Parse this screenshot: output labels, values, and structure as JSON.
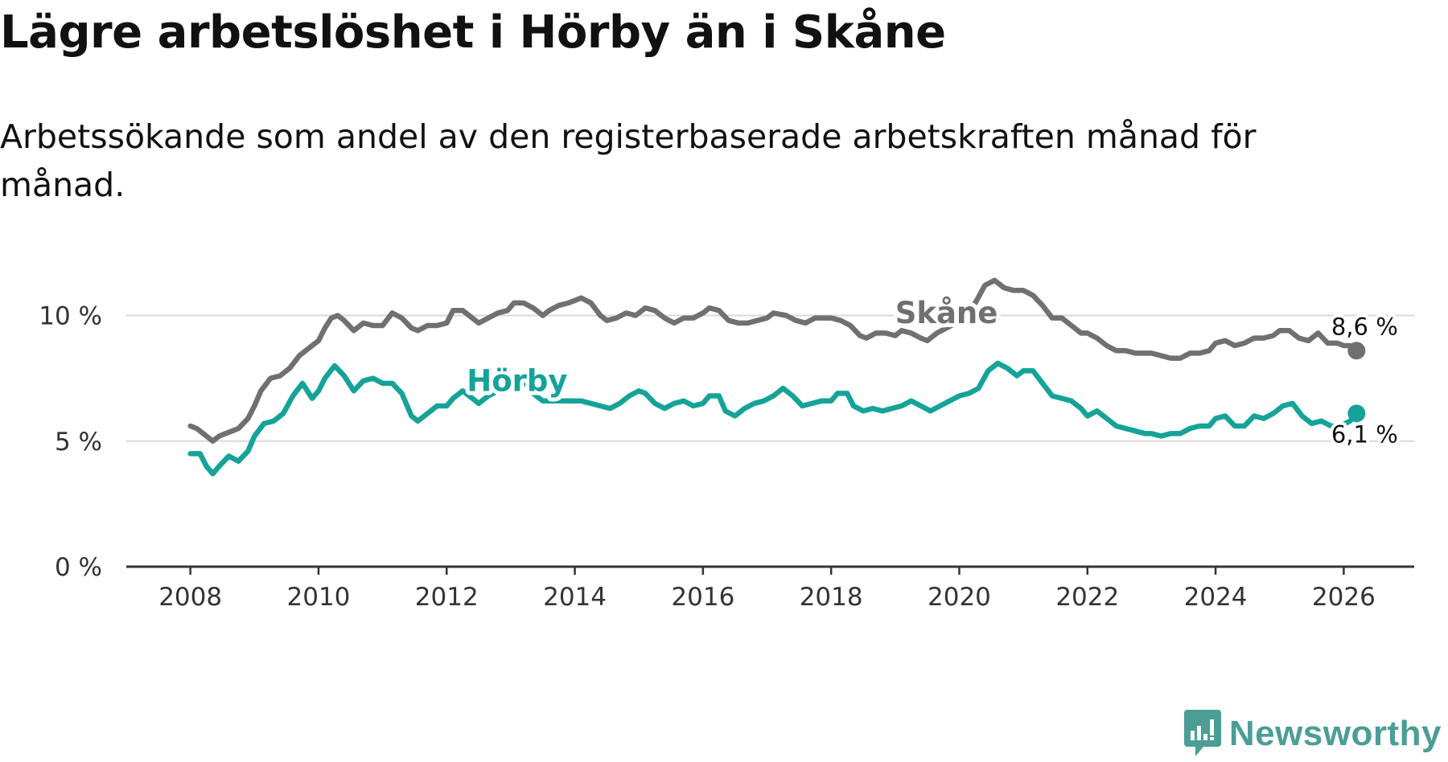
{
  "title": "Lägre arbetslöshet i Hörby än i Skåne",
  "subtitle": "Arbetssökande som andel av den registerbaserade arbetskraften månad för månad.",
  "brand": {
    "name": "Newsworthy",
    "color": "#4a9e96",
    "icon": "newsworthy-logo-icon"
  },
  "chart_data": {
    "type": "line",
    "ylim": [
      0,
      12
    ],
    "xlim": [
      2007.0,
      2027.1
    ],
    "yticks": [
      0,
      5,
      10
    ],
    "yticklabels": [
      "0 %",
      "5 %",
      "10 %"
    ],
    "xticks": [
      2008,
      2010,
      2012,
      2014,
      2016,
      2018,
      2020,
      2022,
      2024,
      2026
    ],
    "xticklabels": [
      "2008",
      "2010",
      "2012",
      "2014",
      "2016",
      "2018",
      "2020",
      "2022",
      "2024",
      "2026"
    ],
    "grid": true,
    "series": [
      {
        "name": "Skåne",
        "color": "#707070",
        "end_label": "8,6 %",
        "points": [
          [
            2008.0,
            5.6
          ],
          [
            2008.1,
            5.5
          ],
          [
            2008.25,
            5.2
          ],
          [
            2008.35,
            5.0
          ],
          [
            2008.45,
            5.2
          ],
          [
            2008.6,
            5.35
          ],
          [
            2008.75,
            5.5
          ],
          [
            2008.9,
            5.9
          ],
          [
            2009.0,
            6.4
          ],
          [
            2009.1,
            7.0
          ],
          [
            2009.25,
            7.5
          ],
          [
            2009.4,
            7.6
          ],
          [
            2009.55,
            7.9
          ],
          [
            2009.7,
            8.4
          ],
          [
            2009.85,
            8.7
          ],
          [
            2010.0,
            9.0
          ],
          [
            2010.1,
            9.5
          ],
          [
            2010.2,
            9.9
          ],
          [
            2010.3,
            10.0
          ],
          [
            2010.4,
            9.8
          ],
          [
            2010.55,
            9.4
          ],
          [
            2010.7,
            9.7
          ],
          [
            2010.85,
            9.6
          ],
          [
            2011.0,
            9.6
          ],
          [
            2011.15,
            10.1
          ],
          [
            2011.3,
            9.9
          ],
          [
            2011.45,
            9.5
          ],
          [
            2011.55,
            9.4
          ],
          [
            2011.7,
            9.6
          ],
          [
            2011.85,
            9.6
          ],
          [
            2012.0,
            9.7
          ],
          [
            2012.1,
            10.2
          ],
          [
            2012.25,
            10.2
          ],
          [
            2012.4,
            9.9
          ],
          [
            2012.5,
            9.7
          ],
          [
            2012.65,
            9.9
          ],
          [
            2012.8,
            10.1
          ],
          [
            2012.95,
            10.2
          ],
          [
            2013.05,
            10.5
          ],
          [
            2013.2,
            10.5
          ],
          [
            2013.35,
            10.3
          ],
          [
            2013.5,
            10.0
          ],
          [
            2013.6,
            10.2
          ],
          [
            2013.75,
            10.4
          ],
          [
            2013.9,
            10.5
          ],
          [
            2014.0,
            10.6
          ],
          [
            2014.1,
            10.7
          ],
          [
            2014.25,
            10.5
          ],
          [
            2014.4,
            10.0
          ],
          [
            2014.5,
            9.8
          ],
          [
            2014.65,
            9.9
          ],
          [
            2014.8,
            10.1
          ],
          [
            2014.95,
            10.0
          ],
          [
            2015.1,
            10.3
          ],
          [
            2015.25,
            10.2
          ],
          [
            2015.4,
            9.9
          ],
          [
            2015.55,
            9.7
          ],
          [
            2015.7,
            9.9
          ],
          [
            2015.85,
            9.9
          ],
          [
            2016.0,
            10.1
          ],
          [
            2016.1,
            10.3
          ],
          [
            2016.25,
            10.2
          ],
          [
            2016.4,
            9.8
          ],
          [
            2016.55,
            9.7
          ],
          [
            2016.7,
            9.7
          ],
          [
            2016.85,
            9.8
          ],
          [
            2017.0,
            9.9
          ],
          [
            2017.1,
            10.1
          ],
          [
            2017.3,
            10.0
          ],
          [
            2017.45,
            9.8
          ],
          [
            2017.6,
            9.7
          ],
          [
            2017.75,
            9.9
          ],
          [
            2017.9,
            9.9
          ],
          [
            2018.0,
            9.9
          ],
          [
            2018.15,
            9.8
          ],
          [
            2018.3,
            9.6
          ],
          [
            2018.45,
            9.2
          ],
          [
            2018.55,
            9.1
          ],
          [
            2018.7,
            9.3
          ],
          [
            2018.85,
            9.3
          ],
          [
            2019.0,
            9.2
          ],
          [
            2019.1,
            9.4
          ],
          [
            2019.25,
            9.3
          ],
          [
            2019.4,
            9.1
          ],
          [
            2019.5,
            9.0
          ],
          [
            2019.65,
            9.3
          ],
          [
            2019.8,
            9.5
          ],
          [
            2019.95,
            9.7
          ],
          [
            2020.1,
            10.0
          ],
          [
            2020.25,
            10.5
          ],
          [
            2020.4,
            11.2
          ],
          [
            2020.55,
            11.4
          ],
          [
            2020.7,
            11.1
          ],
          [
            2020.85,
            11.0
          ],
          [
            2021.0,
            11.0
          ],
          [
            2021.15,
            10.8
          ],
          [
            2021.3,
            10.4
          ],
          [
            2021.45,
            9.9
          ],
          [
            2021.6,
            9.9
          ],
          [
            2021.75,
            9.6
          ],
          [
            2021.9,
            9.3
          ],
          [
            2022.0,
            9.3
          ],
          [
            2022.15,
            9.1
          ],
          [
            2022.3,
            8.8
          ],
          [
            2022.45,
            8.6
          ],
          [
            2022.6,
            8.6
          ],
          [
            2022.75,
            8.5
          ],
          [
            2022.9,
            8.5
          ],
          [
            2023.0,
            8.5
          ],
          [
            2023.15,
            8.4
          ],
          [
            2023.3,
            8.3
          ],
          [
            2023.45,
            8.3
          ],
          [
            2023.6,
            8.5
          ],
          [
            2023.75,
            8.5
          ],
          [
            2023.9,
            8.6
          ],
          [
            2024.0,
            8.9
          ],
          [
            2024.15,
            9.0
          ],
          [
            2024.3,
            8.8
          ],
          [
            2024.45,
            8.9
          ],
          [
            2024.6,
            9.1
          ],
          [
            2024.75,
            9.1
          ],
          [
            2024.9,
            9.2
          ],
          [
            2025.0,
            9.4
          ],
          [
            2025.15,
            9.4
          ],
          [
            2025.3,
            9.1
          ],
          [
            2025.45,
            9.0
          ],
          [
            2025.6,
            9.3
          ],
          [
            2025.75,
            8.9
          ],
          [
            2025.9,
            8.9
          ],
          [
            2026.0,
            8.8
          ],
          [
            2026.1,
            8.8
          ],
          [
            2026.2,
            8.6
          ]
        ]
      },
      {
        "name": "Hörby",
        "color": "#15a399",
        "end_label": "6,1 %",
        "points": [
          [
            2008.0,
            4.5
          ],
          [
            2008.15,
            4.5
          ],
          [
            2008.25,
            4.0
          ],
          [
            2008.35,
            3.7
          ],
          [
            2008.45,
            4.0
          ],
          [
            2008.6,
            4.4
          ],
          [
            2008.75,
            4.2
          ],
          [
            2008.9,
            4.6
          ],
          [
            2009.0,
            5.2
          ],
          [
            2009.15,
            5.7
          ],
          [
            2009.3,
            5.8
          ],
          [
            2009.45,
            6.1
          ],
          [
            2009.6,
            6.8
          ],
          [
            2009.75,
            7.3
          ],
          [
            2009.9,
            6.7
          ],
          [
            2010.0,
            7.0
          ],
          [
            2010.1,
            7.5
          ],
          [
            2010.25,
            8.0
          ],
          [
            2010.4,
            7.6
          ],
          [
            2010.55,
            7.0
          ],
          [
            2010.7,
            7.4
          ],
          [
            2010.85,
            7.5
          ],
          [
            2011.0,
            7.3
          ],
          [
            2011.15,
            7.3
          ],
          [
            2011.3,
            6.9
          ],
          [
            2011.45,
            6.0
          ],
          [
            2011.55,
            5.8
          ],
          [
            2011.7,
            6.1
          ],
          [
            2011.85,
            6.4
          ],
          [
            2012.0,
            6.4
          ],
          [
            2012.1,
            6.7
          ],
          [
            2012.25,
            7.0
          ],
          [
            2012.4,
            6.7
          ],
          [
            2012.5,
            6.5
          ],
          [
            2012.65,
            6.8
          ],
          [
            2012.8,
            7.0
          ],
          [
            2012.95,
            7.2
          ],
          [
            2013.05,
            7.5
          ],
          [
            2013.2,
            7.4
          ],
          [
            2013.35,
            6.9
          ],
          [
            2013.5,
            6.6
          ],
          [
            2013.65,
            6.6
          ],
          [
            2013.8,
            6.6
          ],
          [
            2013.95,
            6.6
          ],
          [
            2014.1,
            6.6
          ],
          [
            2014.25,
            6.5
          ],
          [
            2014.4,
            6.4
          ],
          [
            2014.55,
            6.3
          ],
          [
            2014.7,
            6.5
          ],
          [
            2014.85,
            6.8
          ],
          [
            2015.0,
            7.0
          ],
          [
            2015.1,
            6.9
          ],
          [
            2015.25,
            6.5
          ],
          [
            2015.4,
            6.3
          ],
          [
            2015.55,
            6.5
          ],
          [
            2015.7,
            6.6
          ],
          [
            2015.85,
            6.4
          ],
          [
            2016.0,
            6.5
          ],
          [
            2016.1,
            6.8
          ],
          [
            2016.25,
            6.8
          ],
          [
            2016.35,
            6.2
          ],
          [
            2016.5,
            6.0
          ],
          [
            2016.65,
            6.3
          ],
          [
            2016.8,
            6.5
          ],
          [
            2016.95,
            6.6
          ],
          [
            2017.1,
            6.8
          ],
          [
            2017.25,
            7.1
          ],
          [
            2017.4,
            6.8
          ],
          [
            2017.55,
            6.4
          ],
          [
            2017.7,
            6.5
          ],
          [
            2017.85,
            6.6
          ],
          [
            2018.0,
            6.6
          ],
          [
            2018.1,
            6.9
          ],
          [
            2018.25,
            6.9
          ],
          [
            2018.35,
            6.4
          ],
          [
            2018.5,
            6.2
          ],
          [
            2018.65,
            6.3
          ],
          [
            2018.8,
            6.2
          ],
          [
            2018.95,
            6.3
          ],
          [
            2019.1,
            6.4
          ],
          [
            2019.25,
            6.6
          ],
          [
            2019.4,
            6.4
          ],
          [
            2019.55,
            6.2
          ],
          [
            2019.7,
            6.4
          ],
          [
            2019.85,
            6.6
          ],
          [
            2020.0,
            6.8
          ],
          [
            2020.15,
            6.9
          ],
          [
            2020.3,
            7.1
          ],
          [
            2020.45,
            7.8
          ],
          [
            2020.6,
            8.1
          ],
          [
            2020.75,
            7.9
          ],
          [
            2020.9,
            7.6
          ],
          [
            2021.0,
            7.8
          ],
          [
            2021.15,
            7.8
          ],
          [
            2021.3,
            7.3
          ],
          [
            2021.45,
            6.8
          ],
          [
            2021.6,
            6.7
          ],
          [
            2021.75,
            6.6
          ],
          [
            2021.9,
            6.3
          ],
          [
            2022.0,
            6.0
          ],
          [
            2022.15,
            6.2
          ],
          [
            2022.3,
            5.9
          ],
          [
            2022.45,
            5.6
          ],
          [
            2022.6,
            5.5
          ],
          [
            2022.75,
            5.4
          ],
          [
            2022.9,
            5.3
          ],
          [
            2023.0,
            5.3
          ],
          [
            2023.15,
            5.2
          ],
          [
            2023.3,
            5.3
          ],
          [
            2023.45,
            5.3
          ],
          [
            2023.6,
            5.5
          ],
          [
            2023.75,
            5.6
          ],
          [
            2023.9,
            5.6
          ],
          [
            2024.0,
            5.9
          ],
          [
            2024.15,
            6.0
          ],
          [
            2024.3,
            5.6
          ],
          [
            2024.45,
            5.6
          ],
          [
            2024.6,
            6.0
          ],
          [
            2024.75,
            5.9
          ],
          [
            2024.9,
            6.1
          ],
          [
            2025.05,
            6.4
          ],
          [
            2025.2,
            6.5
          ],
          [
            2025.35,
            6.0
          ],
          [
            2025.5,
            5.7
          ],
          [
            2025.65,
            5.8
          ],
          [
            2025.8,
            5.6
          ],
          [
            2025.95,
            5.6
          ],
          [
            2026.1,
            5.8
          ],
          [
            2026.2,
            6.1
          ]
        ]
      }
    ]
  }
}
